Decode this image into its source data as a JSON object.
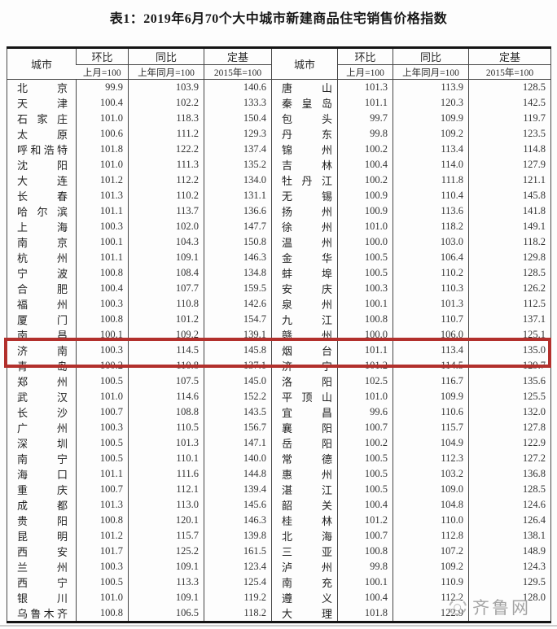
{
  "page": {
    "title": "表1：2019年6月70个大中城市新建商品住宅销售价格指数"
  },
  "table": {
    "headers": {
      "city": "城市",
      "mom": "环比",
      "mom_base": "上月=100",
      "yoy": "同比",
      "yoy_base": "上年同月=100",
      "fixed": "定基",
      "fixed_base": "2015年=100"
    },
    "left_rows": [
      [
        "北京",
        "99.9",
        "103.9",
        "140.6"
      ],
      [
        "天津",
        "100.4",
        "102.2",
        "133.3"
      ],
      [
        "石家庄",
        "101.0",
        "118.3",
        "150.4"
      ],
      [
        "太原",
        "100.6",
        "111.2",
        "129.3"
      ],
      [
        "呼和浩特",
        "101.8",
        "122.2",
        "137.4"
      ],
      [
        "沈阳",
        "101.0",
        "111.3",
        "135.2"
      ],
      [
        "大连",
        "101.2",
        "112.2",
        "134.0"
      ],
      [
        "长春",
        "101.3",
        "110.2",
        "131.1"
      ],
      [
        "哈尔滨",
        "101.1",
        "113.7",
        "136.6"
      ],
      [
        "上海",
        "100.3",
        "102.0",
        "147.7"
      ],
      [
        "南京",
        "100.1",
        "104.3",
        "150.8"
      ],
      [
        "杭州",
        "101.1",
        "109.1",
        "146.3"
      ],
      [
        "宁波",
        "100.8",
        "108.4",
        "134.8"
      ],
      [
        "合肥",
        "100.4",
        "107.7",
        "159.5"
      ],
      [
        "福州",
        "100.3",
        "110.8",
        "142.6"
      ],
      [
        "厦门",
        "100.8",
        "101.2",
        "154.7"
      ],
      [
        "南昌",
        "100.1",
        "109.2",
        "139.1"
      ],
      [
        "济南",
        "100.3",
        "114.5",
        "145.8"
      ],
      [
        "青岛",
        "100.2",
        "110.8",
        "137.1"
      ],
      [
        "郑州",
        "100.5",
        "107.5",
        "145.0"
      ],
      [
        "武汉",
        "101.0",
        "114.6",
        "152.2"
      ],
      [
        "长沙",
        "100.7",
        "108.8",
        "143.5"
      ],
      [
        "广州",
        "100.3",
        "110.5",
        "156.7"
      ],
      [
        "深圳",
        "100.5",
        "101.3",
        "147.1"
      ],
      [
        "南宁",
        "100.5",
        "110.1",
        "140.0"
      ],
      [
        "海口",
        "101.1",
        "111.6",
        "144.8"
      ],
      [
        "重庆",
        "100.7",
        "112.1",
        "139.4"
      ],
      [
        "成都",
        "101.3",
        "113.0",
        "145.6"
      ],
      [
        "贵阳",
        "100.8",
        "120.1",
        "146.3"
      ],
      [
        "昆明",
        "101.2",
        "115.7",
        "139.8"
      ],
      [
        "西安",
        "101.7",
        "125.2",
        "161.5"
      ],
      [
        "兰州",
        "100.3",
        "109.1",
        "123.4"
      ],
      [
        "西宁",
        "100.5",
        "113.3",
        "125.4"
      ],
      [
        "银川",
        "101.0",
        "109.1",
        "119.2"
      ],
      [
        "乌鲁木齐",
        "100.8",
        "106.5",
        "118.2"
      ]
    ],
    "right_rows": [
      [
        "唐山",
        "101.3",
        "113.9",
        "128.5"
      ],
      [
        "秦皇岛",
        "101.1",
        "120.3",
        "142.5"
      ],
      [
        "包头",
        "99.7",
        "109.9",
        "119.7"
      ],
      [
        "丹东",
        "99.8",
        "109.2",
        "123.5"
      ],
      [
        "锦州",
        "100.2",
        "113.4",
        "114.8"
      ],
      [
        "吉林",
        "100.4",
        "114.0",
        "127.9"
      ],
      [
        "牡丹江",
        "100.2",
        "111.8",
        "121.1"
      ],
      [
        "无锡",
        "100.9",
        "110.4",
        "145.8"
      ],
      [
        "扬州",
        "100.9",
        "113.6",
        "141.8"
      ],
      [
        "徐州",
        "101.0",
        "118.2",
        "149.1"
      ],
      [
        "温州",
        "100.0",
        "103.0",
        "118.2"
      ],
      [
        "金华",
        "100.5",
        "106.4",
        "129.8"
      ],
      [
        "蚌埠",
        "100.5",
        "110.2",
        "128.5"
      ],
      [
        "安庆",
        "100.3",
        "110.3",
        "126.2"
      ],
      [
        "泉州",
        "100.1",
        "101.3",
        "112.5"
      ],
      [
        "九江",
        "100.8",
        "110.7",
        "137.1"
      ],
      [
        "赣州",
        "100.0",
        "106.0",
        "125.1"
      ],
      [
        "烟台",
        "101.1",
        "113.4",
        "135.0"
      ],
      [
        "济宁",
        "101.2",
        "114.5",
        "129.7"
      ],
      [
        "洛阳",
        "102.5",
        "116.7",
        "135.6"
      ],
      [
        "平顶山",
        "101.0",
        "109.9",
        "125.5"
      ],
      [
        "宜昌",
        "99.6",
        "110.6",
        "132.0"
      ],
      [
        "襄阳",
        "100.7",
        "115.7",
        "127.8"
      ],
      [
        "岳阳",
        "100.2",
        "104.9",
        "122.9"
      ],
      [
        "常德",
        "100.5",
        "112.3",
        "127.2"
      ],
      [
        "惠州",
        "100.5",
        "103.2",
        "136.8"
      ],
      [
        "湛江",
        "100.5",
        "109.0",
        "128.5"
      ],
      [
        "韶关",
        "100.4",
        "104.8",
        "124.6"
      ],
      [
        "桂林",
        "101.2",
        "110.0",
        "126.4"
      ],
      [
        "北海",
        "100.7",
        "112.8",
        "138.1"
      ],
      [
        "三亚",
        "100.8",
        "107.2",
        "148.9"
      ],
      [
        "泸州",
        "99.8",
        "109.2",
        "124.3"
      ],
      [
        "南充",
        "100.1",
        "110.9",
        "129.5"
      ],
      [
        "遵义",
        "100.4",
        "112.2",
        "128.0"
      ],
      [
        "大理",
        "101.8",
        "122.9",
        ""
      ]
    ]
  },
  "highlight": {
    "color": "#b2302c",
    "covered_cities": [
      "济南",
      "青岛",
      "烟台",
      "济宁"
    ]
  },
  "watermark": {
    "text": "齐鲁网",
    "color": "#a3a3a3"
  }
}
